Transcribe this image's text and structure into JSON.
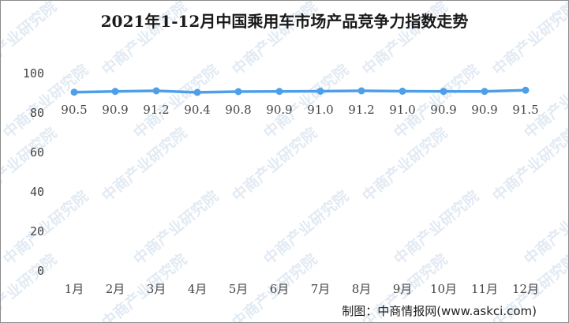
{
  "chart_data": {
    "type": "line",
    "title": "2021年1-12月中国乘用车市场产品竞争力指数走势",
    "categories": [
      "1月",
      "2月",
      "3月",
      "4月",
      "5月",
      "6月",
      "7月",
      "8月",
      "9月",
      "10月",
      "11月",
      "12月"
    ],
    "series": [
      {
        "values": [
          90.5,
          90.9,
          91.2,
          90.4,
          90.8,
          90.9,
          91.0,
          91.2,
          91.0,
          90.9,
          90.9,
          91.5
        ],
        "color": "#4e9fe8"
      }
    ],
    "data_labels": [
      "90.5",
      "90.9",
      "91.2",
      "90.4",
      "90.8",
      "90.9",
      "91.0",
      "91.2",
      "91.0",
      "90.9",
      "90.9",
      "91.5"
    ],
    "yticks": [
      "0",
      "20",
      "40",
      "60",
      "80",
      "100"
    ],
    "ylim": [
      0,
      100
    ],
    "grid": false,
    "legend": "none"
  },
  "watermark": "中商产业研究院",
  "credit": "制图：中商情报网(www.askci.com)"
}
